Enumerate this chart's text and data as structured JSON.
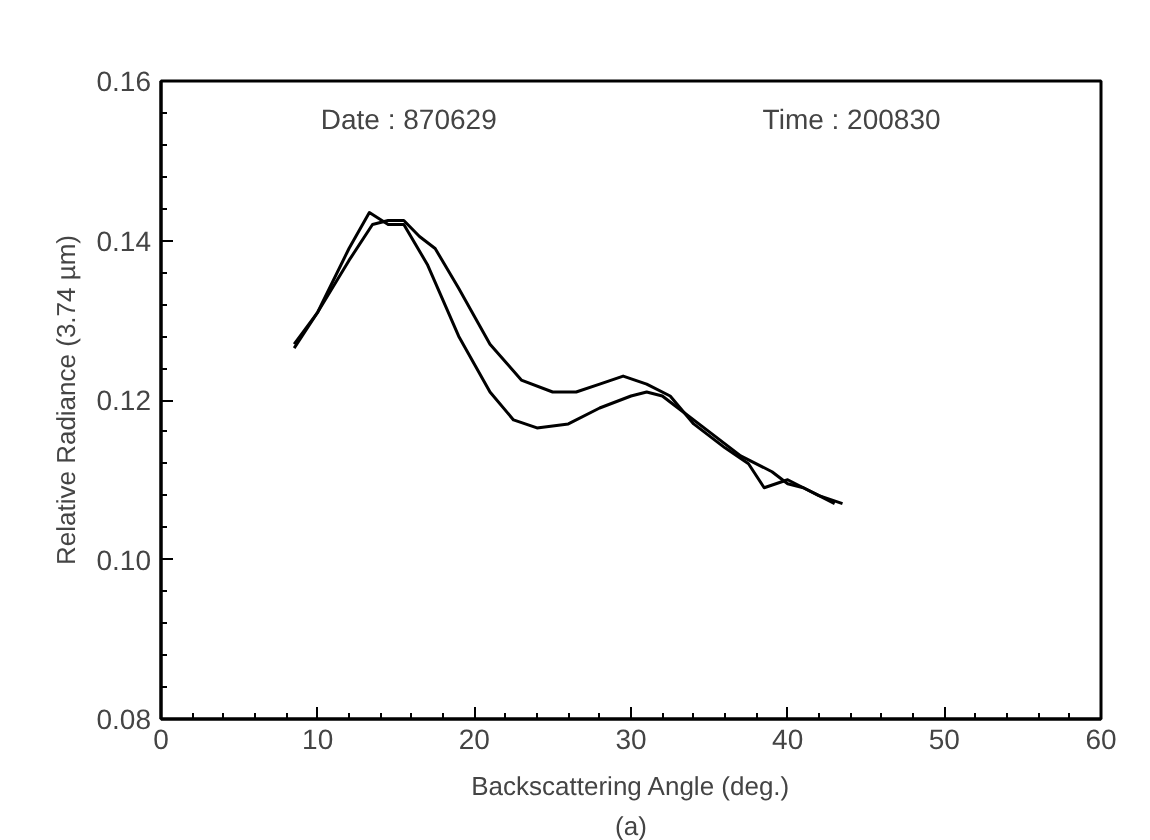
{
  "chart_data": {
    "type": "line",
    "xlabel": "Backscattering Angle (deg.)",
    "ylabel": "Relative Radiance (3.74 µm)",
    "annotations": [
      "Date : 870629",
      "Time : 200830",
      "(a)"
    ],
    "xlim": [
      0,
      60
    ],
    "xticks": [
      0,
      10,
      20,
      30,
      40,
      50,
      60
    ],
    "ylim": [
      0.08,
      0.16
    ],
    "yticks": [
      {
        "value": 0.08,
        "label": "0.08"
      },
      {
        "value": 0.1,
        "label": "0.10"
      },
      {
        "value": 0.12,
        "label": "0.12"
      },
      {
        "value": 0.14,
        "label": "0.14"
      },
      {
        "value": 0.16,
        "label": "0.16"
      }
    ],
    "grid": false,
    "marker": "none",
    "line_style": "solid",
    "series": [
      {
        "color": "#000000",
        "x": [
          8.5,
          10,
          12,
          13.3,
          14.5,
          15.5,
          17,
          19,
          21,
          22.5,
          24,
          26,
          28,
          30,
          31,
          32,
          33,
          35,
          37,
          39,
          40,
          41,
          42.5,
          43
        ],
        "values": [
          0.1265,
          0.131,
          0.139,
          0.1435,
          0.142,
          0.142,
          0.137,
          0.128,
          0.121,
          0.1175,
          0.1165,
          0.117,
          0.119,
          0.1205,
          0.121,
          0.1205,
          0.119,
          0.116,
          0.113,
          0.111,
          0.1095,
          0.109,
          0.1075,
          0.107
        ]
      },
      {
        "color": "#000000",
        "x": [
          8.5,
          10,
          12,
          13.5,
          14.5,
          15.5,
          16.5,
          17.5,
          19,
          21,
          23,
          25,
          26.5,
          28,
          29.5,
          31,
          32.5,
          34,
          36,
          37.5,
          38.5,
          40,
          41,
          42,
          43.5
        ],
        "values": [
          0.127,
          0.131,
          0.1375,
          0.142,
          0.1425,
          0.1425,
          0.1405,
          0.139,
          0.134,
          0.127,
          0.1225,
          0.121,
          0.121,
          0.122,
          0.123,
          0.122,
          0.1205,
          0.117,
          0.114,
          0.112,
          0.109,
          0.11,
          0.109,
          0.108,
          0.107
        ]
      }
    ]
  }
}
